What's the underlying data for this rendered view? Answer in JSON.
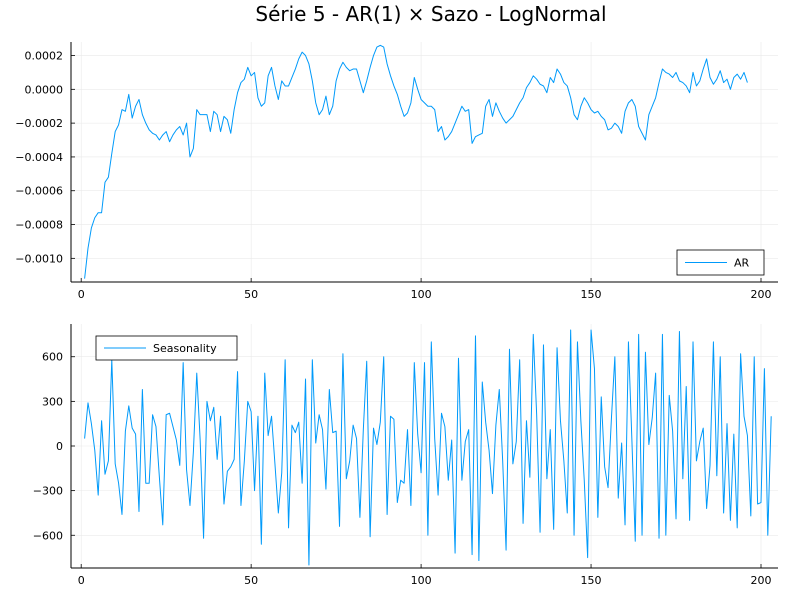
{
  "title": "Série 5 - AR(1) × Sazo - LogNormal",
  "colors": {
    "series": "#009AFA",
    "grid": "#e9e9e9",
    "axis": "#000000"
  },
  "chart_data": [
    {
      "type": "line",
      "xlim": [
        -3,
        205
      ],
      "ylim": [
        -0.00114,
        0.00028
      ],
      "xticks": [
        0,
        50,
        100,
        150,
        200
      ],
      "xtick_labels": [
        "0",
        "50",
        "100",
        "150",
        "200"
      ],
      "yticks": [
        0.0002,
        0.0,
        -0.0002,
        -0.0004,
        -0.0006,
        -0.0008,
        -0.001
      ],
      "ytick_labels": [
        "0.0002",
        "0.0000",
        "−0.0002",
        "−0.0004",
        "−0.0006",
        "−0.0008",
        "−0.0010"
      ],
      "grid": true,
      "legend_position": "bottom-right",
      "series": [
        {
          "name": "AR",
          "x_start": 1,
          "values": [
            -0.00112,
            -0.00094,
            -0.00082,
            -0.00076,
            -0.00073,
            -0.00073,
            -0.00055,
            -0.00052,
            -0.00038,
            -0.00025,
            -0.00021,
            -0.00012,
            -0.00013,
            -3e-05,
            -0.00017,
            -0.0001,
            -6e-05,
            -0.00015,
            -0.0002,
            -0.00024,
            -0.00026,
            -0.00027,
            -0.0003,
            -0.00027,
            -0.00025,
            -0.00031,
            -0.00027,
            -0.00024,
            -0.00022,
            -0.00027,
            -0.0002,
            -0.0004,
            -0.00035,
            -0.00012,
            -0.00015,
            -0.00015,
            -0.00015,
            -0.00025,
            -0.00013,
            -0.00015,
            -0.00025,
            -0.00016,
            -0.00018,
            -0.00026,
            -0.00012,
            -2e-05,
            4e-05,
            6e-05,
            0.00013,
            8e-05,
            0.0001,
            -5e-05,
            -0.0001,
            -8e-05,
            8e-05,
            0.00013,
            2e-05,
            -6e-05,
            5e-05,
            2e-05,
            2e-05,
            7e-05,
            0.00012,
            0.00018,
            0.00022,
            0.0002,
            0.00015,
            5e-05,
            -8e-05,
            -0.00015,
            -0.00012,
            -4e-05,
            -0.00015,
            -0.0001,
            5e-05,
            0.00012,
            0.00016,
            0.00013,
            0.00011,
            0.00012,
            0.00012,
            5e-05,
            -2e-05,
            5e-05,
            0.00013,
            0.0002,
            0.00025,
            0.00026,
            0.00025,
            0.00015,
            8e-05,
            2e-05,
            -3e-05,
            -0.0001,
            -0.00016,
            -0.00014,
            -8e-05,
            7e-05,
            0.0,
            -6e-05,
            -8e-05,
            -0.0001,
            -0.0001,
            -0.00012,
            -0.00025,
            -0.00022,
            -0.0003,
            -0.00028,
            -0.00025,
            -0.0002,
            -0.00015,
            -0.0001,
            -0.00013,
            -0.00012,
            -0.00032,
            -0.00028,
            -0.00027,
            -0.00026,
            -0.0001,
            -6e-05,
            -0.00016,
            -8e-05,
            -0.00013,
            -0.00017,
            -0.0002,
            -0.00018,
            -0.00016,
            -0.00012,
            -8e-05,
            -5e-05,
            1e-05,
            4e-05,
            8e-05,
            6e-05,
            3e-05,
            2e-05,
            -2e-05,
            7e-05,
            4e-05,
            0.00012,
            9e-05,
            4e-05,
            2e-05,
            -5e-05,
            -0.00015,
            -0.00018,
            -0.0001,
            -5e-05,
            -8e-05,
            -0.00012,
            -0.00014,
            -0.00013,
            -0.00016,
            -0.00018,
            -0.00024,
            -0.00023,
            -0.0002,
            -0.00022,
            -0.00026,
            -0.00013,
            -8e-05,
            -6e-05,
            -0.0001,
            -0.00022,
            -0.00026,
            -0.0003,
            -0.00015,
            -0.0001,
            -5e-05,
            4e-05,
            0.00012,
            0.0001,
            9e-05,
            7e-05,
            0.0001,
            5e-05,
            4e-05,
            2e-05,
            -2e-05,
            0.0001,
            2e-05,
            5e-05,
            0.00012,
            0.00018,
            7e-05,
            3e-05,
            6e-05,
            0.00011,
            4e-05,
            6e-05,
            0.0,
            7e-05,
            9e-05,
            6e-05,
            0.0001,
            4e-05
          ]
        }
      ]
    },
    {
      "type": "line",
      "xlim": [
        -3,
        205
      ],
      "ylim": [
        -820,
        820
      ],
      "xticks": [
        0,
        50,
        100,
        150,
        200
      ],
      "xtick_labels": [
        "0",
        "50",
        "100",
        "150",
        "200"
      ],
      "yticks": [
        600,
        300,
        0,
        -300,
        -600
      ],
      "ytick_labels": [
        "600",
        "300",
        "0",
        "−300",
        "−600"
      ],
      "grid": true,
      "legend_position": "top-left",
      "series": [
        {
          "name": "Seasonality",
          "x_start": 1,
          "values": [
            50,
            290,
            150,
            -30,
            -330,
            170,
            -190,
            -100,
            580,
            -120,
            -250,
            -460,
            100,
            270,
            120,
            80,
            -440,
            380,
            -250,
            -250,
            210,
            130,
            -210,
            -530,
            210,
            220,
            130,
            40,
            -130,
            560,
            -160,
            -400,
            -40,
            490,
            40,
            -620,
            300,
            170,
            260,
            -90,
            200,
            -390,
            -170,
            -140,
            -90,
            500,
            -400,
            -100,
            300,
            230,
            -300,
            200,
            -660,
            490,
            70,
            200,
            -120,
            -450,
            -180,
            580,
            -550,
            140,
            90,
            160,
            -250,
            450,
            -800,
            580,
            20,
            210,
            110,
            -290,
            380,
            90,
            100,
            -540,
            620,
            -220,
            -100,
            140,
            50,
            -480,
            110,
            570,
            -610,
            120,
            10,
            160,
            600,
            -460,
            200,
            180,
            -380,
            -230,
            -250,
            110,
            -400,
            560,
            80,
            -180,
            560,
            -600,
            700,
            50,
            -330,
            220,
            130,
            -230,
            40,
            -720,
            590,
            -230,
            30,
            110,
            -730,
            740,
            -770,
            430,
            160,
            -30,
            -320,
            140,
            380,
            -100,
            -700,
            650,
            -120,
            30,
            580,
            -520,
            170,
            -210,
            750,
            210,
            -580,
            680,
            -220,
            110,
            -560,
            660,
            170,
            -100,
            -450,
            780,
            -600,
            700,
            170,
            -230,
            -750,
            780,
            520,
            -480,
            330,
            -140,
            -280,
            190,
            600,
            -350,
            20,
            -530,
            700,
            50,
            -640,
            750,
            -600,
            630,
            10,
            190,
            490,
            -620,
            750,
            -600,
            340,
            100,
            -490,
            770,
            -220,
            400,
            -500,
            700,
            -100,
            30,
            120,
            -420,
            -130,
            700,
            -200,
            600,
            -450,
            150,
            -500,
            80,
            -550,
            620,
            200,
            70,
            -470,
            600,
            -390,
            -380,
            520,
            -600,
            200
          ]
        }
      ]
    }
  ]
}
